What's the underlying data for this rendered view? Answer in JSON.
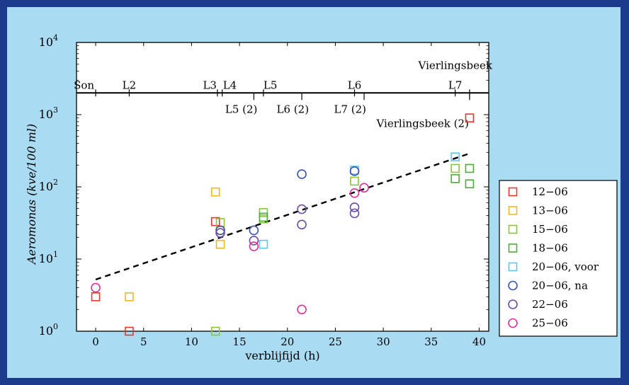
{
  "chart_data": {
    "type": "scatter",
    "xlabel": "verblijfijd (h)",
    "ylabel": "Aeromonas (kve/100 ml)",
    "xlim": [
      -2,
      41
    ],
    "ylim": [
      1,
      10000
    ],
    "yscale": "log",
    "x_ticks": [
      0,
      5,
      10,
      15,
      20,
      25,
      30,
      35,
      40
    ],
    "y_ticks": [
      {
        "base": "10",
        "exp": "0",
        "value": 1
      },
      {
        "base": "10",
        "exp": "1",
        "value": 10
      },
      {
        "base": "10",
        "exp": "2",
        "value": 100
      },
      {
        "base": "10",
        "exp": "3",
        "value": 1000
      },
      {
        "base": "10",
        "exp": "4",
        "value": 10000
      }
    ],
    "location_axis": {
      "y_value": 2000,
      "ticks": [
        {
          "label": "Son",
          "x": 0
        },
        {
          "label": "L2",
          "x": 3.5
        },
        {
          "label": "L3",
          "x": 12.7
        },
        {
          "label": "L4",
          "x": 13.2
        },
        {
          "label": "L5",
          "x": 17.5
        },
        {
          "label": "L6",
          "x": 27
        },
        {
          "label": "L7",
          "x": 37.5
        },
        {
          "label": "Vierlingsbeek",
          "x": 39
        }
      ],
      "ticks_below": [
        {
          "label": "L5 (2)",
          "x": 16.5
        },
        {
          "label": "L6 (2)",
          "x": 21.5
        },
        {
          "label": "L7 (2)",
          "x": 28
        },
        {
          "label": "Vierlingsbeek (2)",
          "x": 39
        }
      ]
    },
    "trendline": {
      "style": "dashed",
      "x": [
        0,
        39
      ],
      "y": [
        5.2,
        290
      ]
    },
    "legend_position": "right",
    "series": [
      {
        "name": "12-06",
        "marker": "square",
        "color": "#e8382c",
        "x": [
          0,
          3.5,
          12.5,
          39
        ],
        "y": [
          3,
          1,
          33,
          900
        ]
      },
      {
        "name": "13-06",
        "marker": "square",
        "color": "#f2b824",
        "x": [
          3.5,
          12.5,
          13,
          13
        ],
        "y": [
          3,
          85,
          16,
          25
        ]
      },
      {
        "name": "15-06",
        "marker": "square",
        "color": "#8ac63c",
        "x": [
          12.5,
          13,
          17.5,
          17.5,
          27,
          37.5
        ],
        "y": [
          1,
          32,
          44,
          36,
          120,
          180
        ]
      },
      {
        "name": "18-06",
        "marker": "square",
        "color": "#4eaa3c",
        "x": [
          17.5,
          37.5,
          39,
          39
        ],
        "y": [
          38,
          130,
          180,
          110
        ]
      },
      {
        "name": "20-06, voor",
        "marker": "square",
        "color": "#5cc8e8",
        "x": [
          17.5,
          37.5,
          27
        ],
        "y": [
          16,
          260,
          170
        ]
      },
      {
        "name": "20-06, na",
        "marker": "circle",
        "color": "#3a52b4",
        "x": [
          13,
          16.5,
          21.5,
          27
        ],
        "y": [
          25,
          25,
          150,
          165
        ]
      },
      {
        "name": "22-06",
        "marker": "circle",
        "color": "#6a4ca6",
        "x": [
          13,
          16.5,
          21.5,
          21.5,
          27,
          27
        ],
        "y": [
          23,
          18,
          49,
          30,
          52,
          43
        ]
      },
      {
        "name": "25-06",
        "marker": "circle",
        "color": "#e0309a",
        "x": [
          0,
          16.5,
          21.5,
          27,
          28
        ],
        "y": [
          4,
          15,
          2,
          82,
          97
        ]
      }
    ]
  },
  "legend": {
    "items": [
      {
        "label": "12−06",
        "marker": "square",
        "color": "#e8382c"
      },
      {
        "label": "13−06",
        "marker": "square",
        "color": "#f2b824"
      },
      {
        "label": "15−06",
        "marker": "square",
        "color": "#8ac63c"
      },
      {
        "label": "18−06",
        "marker": "square",
        "color": "#4eaa3c"
      },
      {
        "label": "20−06, voor",
        "marker": "square",
        "color": "#5cc8e8"
      },
      {
        "label": "20−06, na",
        "marker": "circle",
        "color": "#3a52b4"
      },
      {
        "label": "22−06",
        "marker": "circle",
        "color": "#6a4ca6"
      },
      {
        "label": "25−06",
        "marker": "circle",
        "color": "#e0309a"
      }
    ]
  },
  "colors": {
    "frame": "#1c3b8c",
    "panel": "#a9dcf3",
    "plot_background": "#ffffff",
    "axis": "#000000"
  }
}
